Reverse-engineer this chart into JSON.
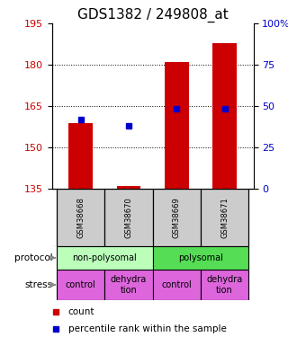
{
  "title": "GDS1382 / 249808_at",
  "samples": [
    "GSM38668",
    "GSM38670",
    "GSM38669",
    "GSM38671"
  ],
  "count_values": [
    159,
    136,
    181,
    188
  ],
  "count_base": [
    135,
    135,
    135,
    135
  ],
  "percentile_values": [
    160,
    158,
    164,
    164
  ],
  "ylim_left": [
    135,
    195
  ],
  "ylim_right": [
    0,
    100
  ],
  "yticks_left": [
    135,
    150,
    165,
    180,
    195
  ],
  "yticks_right": [
    0,
    25,
    50,
    75,
    100
  ],
  "ytick_labels_right": [
    "0",
    "25",
    "50",
    "75",
    "100%"
  ],
  "grid_values": [
    150,
    165,
    180
  ],
  "bar_color": "#cc0000",
  "dot_color": "#0000cc",
  "protocol_labels": [
    "non-polysomal",
    "polysomal"
  ],
  "protocol_colors": [
    "#bbffbb",
    "#55dd55"
  ],
  "stress_labels": [
    "control",
    "dehydra\ntion",
    "control",
    "dehydra\ntion"
  ],
  "stress_color": "#dd66dd",
  "sample_bg_color": "#cccccc",
  "bar_width": 0.5,
  "left_label_color": "#cc0000",
  "right_label_color": "#0000cc",
  "title_fontsize": 11
}
